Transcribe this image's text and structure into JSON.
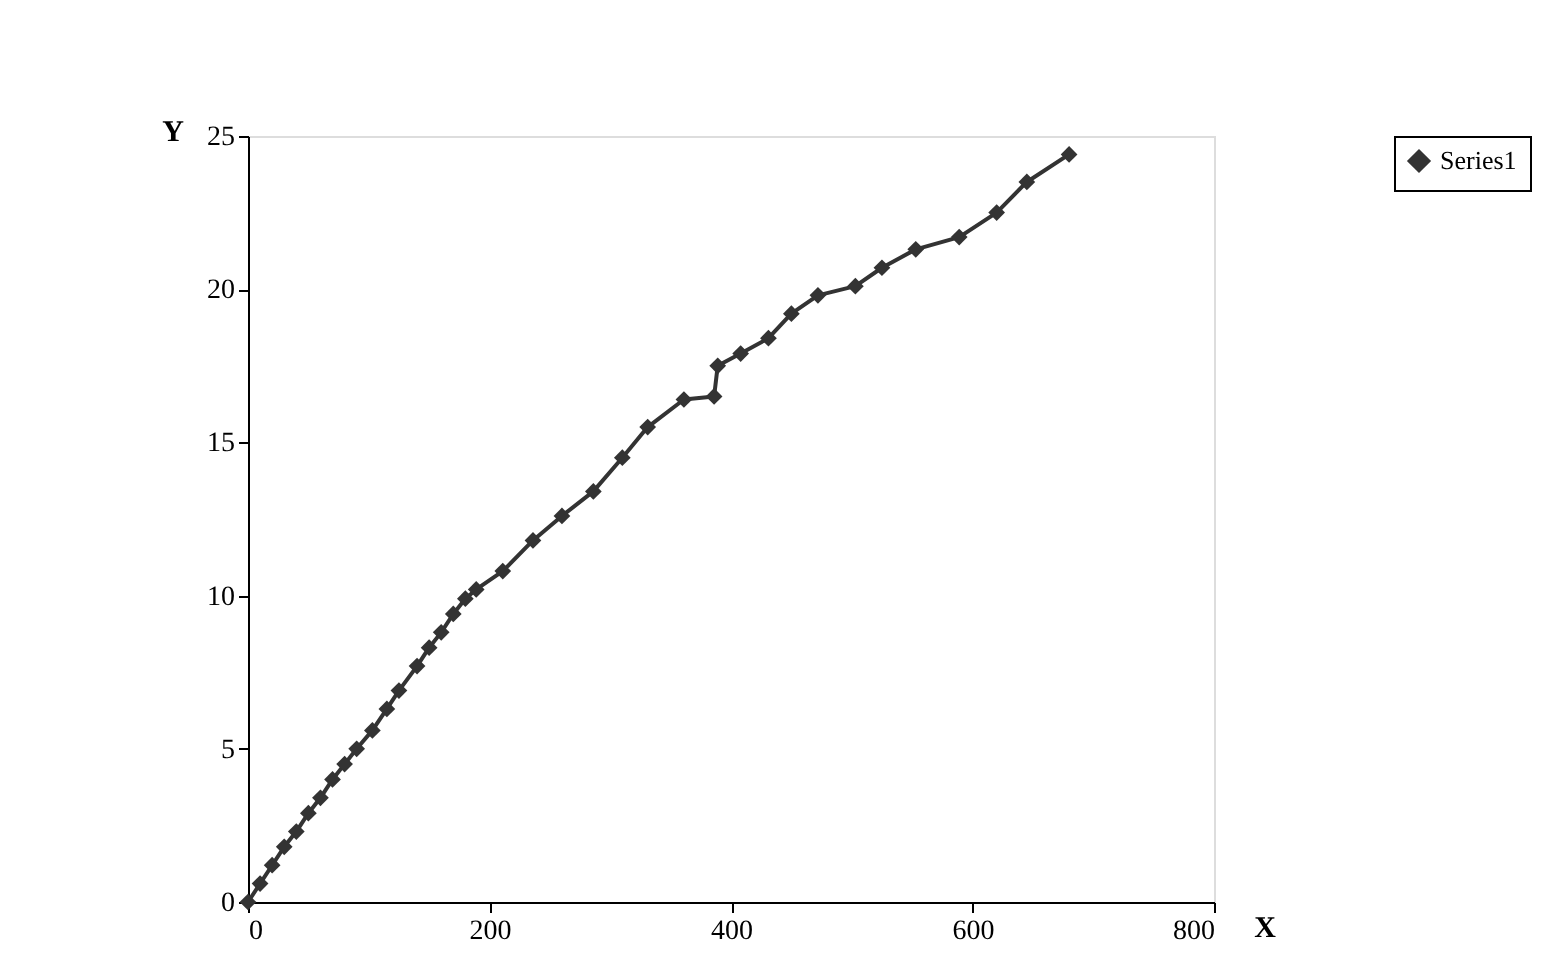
{
  "chart_data": {
    "type": "line",
    "xlabel": "X",
    "ylabel": "Y",
    "x": [
      0,
      10,
      20,
      30,
      40,
      50,
      60,
      70,
      80,
      90,
      103,
      115,
      125,
      140,
      150,
      160,
      170,
      180,
      189,
      211,
      236,
      260,
      286,
      310,
      331,
      361,
      386,
      389,
      408,
      431,
      450,
      472,
      503,
      525,
      553,
      589,
      620,
      645,
      680
    ],
    "series": [
      {
        "name": "Series1",
        "color": "#333333",
        "values": [
          0,
          0.6,
          1.2,
          1.8,
          2.3,
          2.9,
          3.4,
          4.0,
          4.5,
          5.0,
          5.6,
          6.3,
          6.9,
          7.7,
          8.3,
          8.8,
          9.4,
          9.9,
          10.2,
          10.8,
          11.8,
          12.6,
          13.4,
          14.5,
          15.5,
          16.4,
          16.5,
          17.5,
          17.9,
          18.4,
          19.2,
          19.8,
          20.1,
          20.7,
          21.3,
          21.7,
          22.5,
          23.5,
          24.4
        ]
      }
    ],
    "xlim": [
      0,
      800
    ],
    "xticks": [
      0,
      200,
      400,
      600,
      800
    ],
    "ylim": [
      0,
      25
    ],
    "yticks": [
      0,
      5,
      10,
      15,
      20,
      25
    ],
    "grid": false,
    "legend": "right",
    "marker": "diamond",
    "line_style": "solid"
  }
}
